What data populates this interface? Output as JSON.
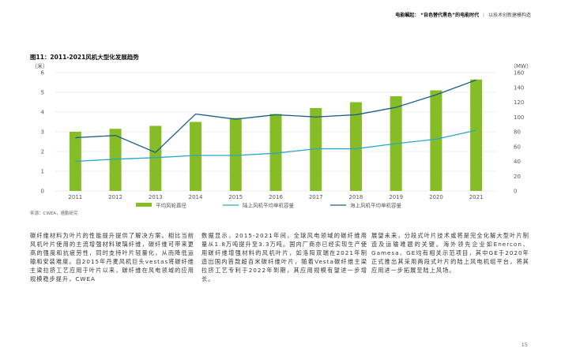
{
  "header": {
    "prefix": "电能崛起：",
    "title": "“自色替代黑色”的电能时代",
    "subtitle": "以技术创新建模构造"
  },
  "figure_title": "图11：2011-2021风机大型化发展趋势",
  "source": "来源：CWEA，德勤研究",
  "page_number": "15",
  "colors": {
    "bar": "#86bc25",
    "onshore_line": "#2aa7c9",
    "offshore_line": "#1b5e8c",
    "grid": "#e6e6e6"
  },
  "chart_data": {
    "type": "bar+line",
    "categories": [
      "2011",
      "2012",
      "2013",
      "2014",
      "2015",
      "2016",
      "2017",
      "2018",
      "2019",
      "2020",
      "2021"
    ],
    "left_axis": {
      "unit": "（米）",
      "ylim": [
        0,
        6
      ],
      "ticks": [
        "0",
        "1",
        "2",
        "3",
        "4",
        "5",
        "6"
      ]
    },
    "right_axis": {
      "unit": "（MW）",
      "ylim": [
        0,
        160
      ],
      "ticks": [
        "0",
        "20",
        "40",
        "60",
        "80",
        "100",
        "120",
        "140",
        "160"
      ]
    },
    "grid": true,
    "legend_position": "bottom",
    "series": [
      {
        "name": "平均风轮直径",
        "kind": "bar",
        "axis": "left",
        "values": [
          3.0,
          3.15,
          3.3,
          3.5,
          3.7,
          3.9,
          4.2,
          4.5,
          4.8,
          5.1,
          5.65
        ]
      },
      {
        "name": "陆上风机平均单机容量",
        "kind": "line",
        "axis": "right",
        "values": [
          40,
          43,
          45,
          48,
          48,
          51,
          57,
          57,
          64,
          70,
          82
        ]
      },
      {
        "name": "海上风机平均单机容量",
        "kind": "line",
        "axis": "right",
        "values": [
          72,
          75,
          52,
          104,
          97,
          103,
          100,
          103,
          113,
          130,
          150
        ]
      }
    ]
  },
  "body": {
    "col1": "碳纤维材料为叶片的性能提升提供了解决方案。相比当前风机叶片使用的主流增强材料玻璃纤维，碳纤维可带来更高的强度和抗疲劳性，同时支持叶片轻量化，从而降低运输和安装难度。自2015年丹麦风机巨头vestas将碳纤维主梁拉挤工艺应用于叶片以来，碳纤维在风电领域的应用规模稳步提升，CWEA",
    "col2": "数据显示，2015-2021年间，全球风电领域的碳纤维用量从1.8万吨提升至3.3万吨。国内厂商亦已经实现生产使用碳纤维增强材料的风机叶片，如洛阳双瑞在2021年制造出国内首款超百米碳纤维叶片，随着Vesta碳纤维主梁拉挤工艺专利于2022年到期，其应用规模有望进一步增长。",
    "col3": "展望未来，分段式叶片技术或将是完全化解大型叶片制造及运输难题的关键。海外领先企业如Enercon、Gamesa、GE均有相关示范项目，其中GE于2020年正式推出其采用两段式叶片的陆上风电机组平台，将其应用进一步拓展至陆上风场。"
  }
}
